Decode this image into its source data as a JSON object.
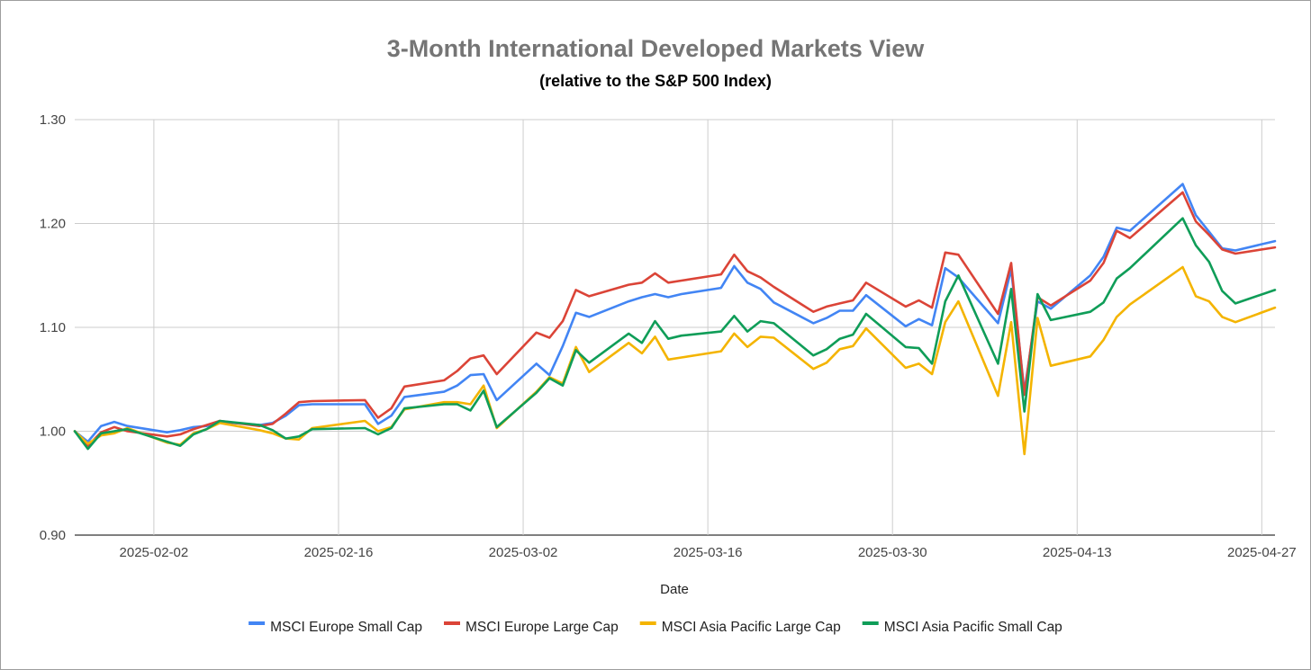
{
  "chart_data": {
    "type": "line",
    "title": "3-Month International Developed Markets View",
    "subtitle": "(relative to the S&P 500 Index)",
    "xlabel": "Date",
    "ylabel": "",
    "ylim": [
      0.9,
      1.3
    ],
    "yticks": [
      "0.90",
      "1.00",
      "1.10",
      "1.20",
      "1.30"
    ],
    "xlim": [
      "2025-01-27",
      "2025-04-28"
    ],
    "xticks": [
      "2025-02-02",
      "2025-02-16",
      "2025-03-02",
      "2025-03-16",
      "2025-03-30",
      "2025-04-13",
      "2025-04-27"
    ],
    "grid": true,
    "legend_position": "bottom",
    "x": [
      "2025-01-27",
      "2025-01-28",
      "2025-01-29",
      "2025-01-30",
      "2025-01-31",
      "2025-02-03",
      "2025-02-04",
      "2025-02-05",
      "2025-02-06",
      "2025-02-07",
      "2025-02-10",
      "2025-02-11",
      "2025-02-12",
      "2025-02-13",
      "2025-02-14",
      "2025-02-18",
      "2025-02-19",
      "2025-02-20",
      "2025-02-21",
      "2025-02-24",
      "2025-02-25",
      "2025-02-26",
      "2025-02-27",
      "2025-02-28",
      "2025-03-03",
      "2025-03-04",
      "2025-03-05",
      "2025-03-06",
      "2025-03-07",
      "2025-03-10",
      "2025-03-11",
      "2025-03-12",
      "2025-03-13",
      "2025-03-14",
      "2025-03-17",
      "2025-03-18",
      "2025-03-19",
      "2025-03-20",
      "2025-03-21",
      "2025-03-24",
      "2025-03-25",
      "2025-03-26",
      "2025-03-27",
      "2025-03-28",
      "2025-03-31",
      "2025-04-01",
      "2025-04-02",
      "2025-04-03",
      "2025-04-04",
      "2025-04-07",
      "2025-04-08",
      "2025-04-09",
      "2025-04-10",
      "2025-04-11",
      "2025-04-14",
      "2025-04-15",
      "2025-04-16",
      "2025-04-17",
      "2025-04-21",
      "2025-04-22",
      "2025-04-23",
      "2025-04-24",
      "2025-04-25",
      "2025-04-28"
    ],
    "series": [
      {
        "name": "MSCI Europe Small Cap",
        "color": "#4285f4",
        "values": [
          1.0,
          0.99,
          1.005,
          1.009,
          1.005,
          0.999,
          1.001,
          1.004,
          1.005,
          1.009,
          1.006,
          1.008,
          1.015,
          1.025,
          1.026,
          1.026,
          1.007,
          1.015,
          1.033,
          1.038,
          1.044,
          1.054,
          1.055,
          1.03,
          1.065,
          1.054,
          1.082,
          1.114,
          1.11,
          1.125,
          1.129,
          1.132,
          1.129,
          1.132,
          1.138,
          1.159,
          1.143,
          1.137,
          1.124,
          1.104,
          1.109,
          1.116,
          1.116,
          1.131,
          1.101,
          1.108,
          1.102,
          1.157,
          1.148,
          1.104,
          1.156,
          1.038,
          1.125,
          1.118,
          1.15,
          1.168,
          1.196,
          1.193,
          1.238,
          1.208,
          1.192,
          1.176,
          1.174,
          1.183
        ]
      },
      {
        "name": "MSCI Europe Large Cap",
        "color": "#db4437",
        "values": [
          1.0,
          0.986,
          0.999,
          1.004,
          1.0,
          0.995,
          0.997,
          1.002,
          1.006,
          1.01,
          1.005,
          1.007,
          1.017,
          1.028,
          1.029,
          1.03,
          1.013,
          1.022,
          1.043,
          1.049,
          1.058,
          1.07,
          1.073,
          1.055,
          1.095,
          1.09,
          1.106,
          1.136,
          1.13,
          1.141,
          1.143,
          1.152,
          1.143,
          1.145,
          1.151,
          1.17,
          1.154,
          1.148,
          1.139,
          1.115,
          1.12,
          1.123,
          1.126,
          1.143,
          1.12,
          1.126,
          1.119,
          1.172,
          1.17,
          1.113,
          1.162,
          1.035,
          1.129,
          1.121,
          1.145,
          1.162,
          1.193,
          1.186,
          1.23,
          1.202,
          1.189,
          1.175,
          1.171,
          1.177
        ]
      },
      {
        "name": "MSCI Asia Pacific Large Cap",
        "color": "#f4b400",
        "values": [
          1.0,
          0.988,
          0.996,
          0.998,
          1.003,
          0.989,
          0.987,
          0.998,
          1.002,
          1.008,
          1.001,
          0.998,
          0.993,
          0.992,
          1.003,
          1.01,
          1.0,
          1.004,
          1.021,
          1.028,
          1.028,
          1.026,
          1.044,
          1.003,
          1.038,
          1.052,
          1.046,
          1.081,
          1.057,
          1.085,
          1.075,
          1.091,
          1.069,
          1.071,
          1.077,
          1.094,
          1.081,
          1.091,
          1.09,
          1.06,
          1.066,
          1.079,
          1.082,
          1.099,
          1.061,
          1.065,
          1.055,
          1.105,
          1.125,
          1.034,
          1.105,
          0.978,
          1.109,
          1.063,
          1.072,
          1.088,
          1.11,
          1.122,
          1.158,
          1.13,
          1.125,
          1.11,
          1.105,
          1.119
        ]
      },
      {
        "name": "MSCI Asia Pacific Small Cap",
        "color": "#0f9d58",
        "values": [
          1.0,
          0.983,
          0.998,
          1.0,
          1.002,
          0.99,
          0.986,
          0.997,
          1.002,
          1.01,
          1.006,
          1.001,
          0.993,
          0.995,
          1.002,
          1.003,
          0.997,
          1.003,
          1.022,
          1.026,
          1.026,
          1.02,
          1.039,
          1.004,
          1.037,
          1.051,
          1.044,
          1.078,
          1.066,
          1.094,
          1.085,
          1.106,
          1.089,
          1.092,
          1.096,
          1.111,
          1.096,
          1.106,
          1.104,
          1.073,
          1.079,
          1.089,
          1.093,
          1.113,
          1.081,
          1.08,
          1.065,
          1.125,
          1.15,
          1.065,
          1.137,
          1.019,
          1.132,
          1.107,
          1.115,
          1.124,
          1.147,
          1.157,
          1.205,
          1.179,
          1.163,
          1.135,
          1.123,
          1.136
        ]
      }
    ]
  }
}
